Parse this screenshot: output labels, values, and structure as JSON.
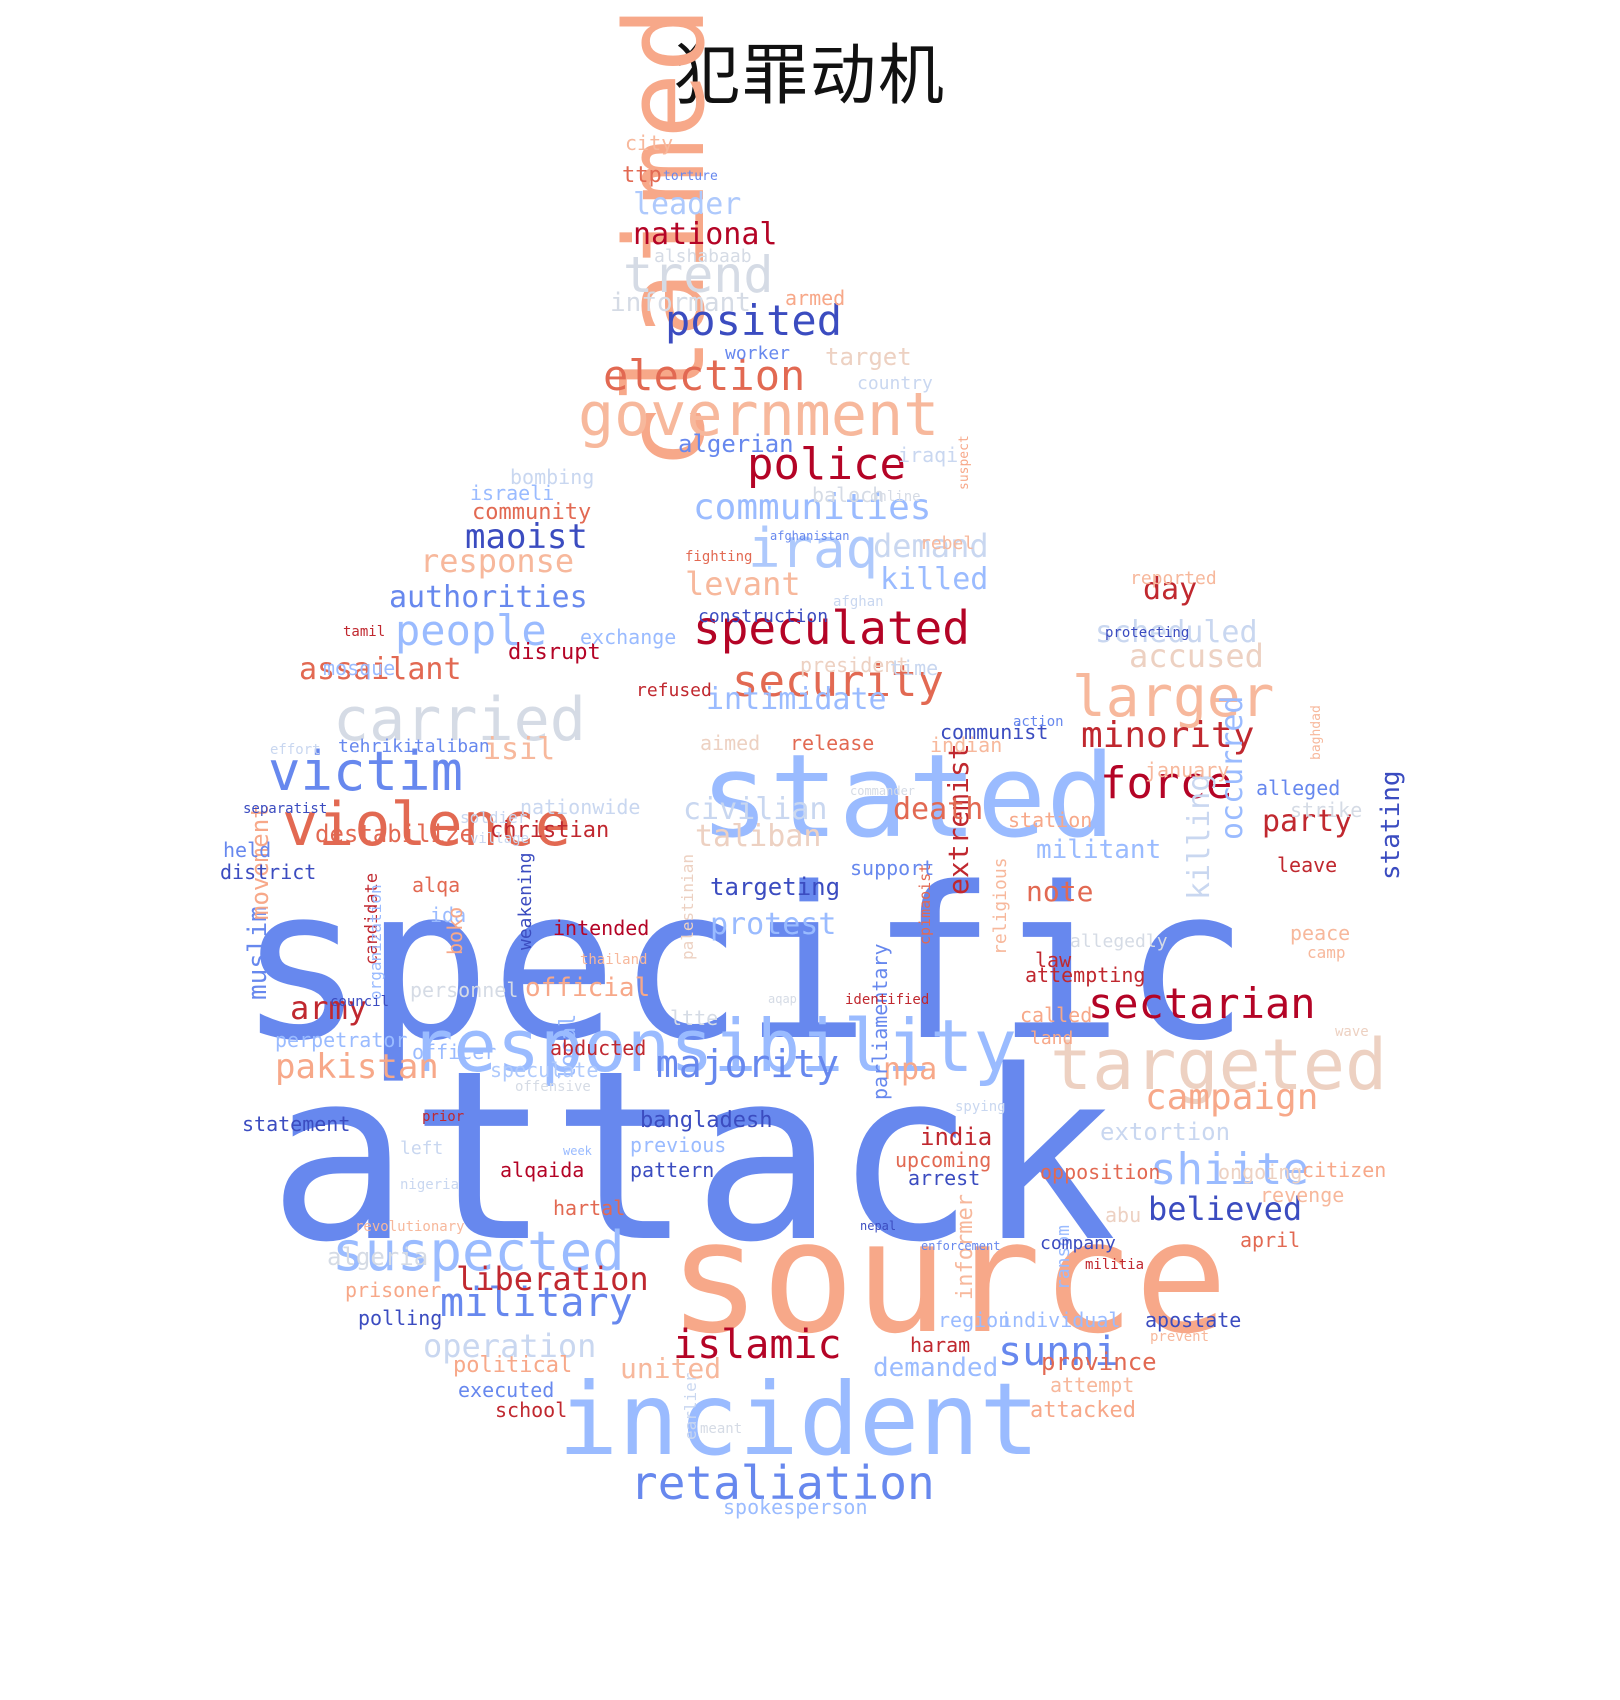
{
  "title": "犯罪动机",
  "colors": {
    "blue_dark": "#3b4cc0",
    "blue_mid": "#6788ee",
    "blue_light": "#9abbff",
    "blue_pale": "#c9d7f0",
    "red_dark": "#b40426",
    "red_mid": "#e26952",
    "red_light": "#f7a889",
    "red_pale": "#edd1c2"
  },
  "words": [
    {
      "text": "specific",
      "color": "#6788ee"
    },
    {
      "text": "attack",
      "color": "#6788ee"
    },
    {
      "text": "source",
      "color": "#f7a889"
    },
    {
      "text": "incident",
      "color": "#9abbff"
    },
    {
      "text": "stated",
      "color": "#9abbff"
    },
    {
      "text": "claimed",
      "color": "#f7a889"
    },
    {
      "text": "responsibility",
      "color": "#9abbff"
    },
    {
      "text": "targeted",
      "color": "#edd1c2"
    },
    {
      "text": "government",
      "color": "#f7b89c"
    },
    {
      "text": "violence",
      "color": "#e26952"
    },
    {
      "text": "carried",
      "color": "#d5dbe5"
    },
    {
      "text": "victim",
      "color": "#6788ee"
    },
    {
      "text": "retaliation",
      "color": "#6788ee"
    },
    {
      "text": "suspected",
      "color": "#9abbff"
    },
    {
      "text": "larger",
      "color": "#f7b89c"
    },
    {
      "text": "trend",
      "color": "#d5dbe5"
    },
    {
      "text": "iraq",
      "color": "#aec9fc"
    },
    {
      "text": "speculated",
      "color": "#b40426"
    },
    {
      "text": "security",
      "color": "#e26952"
    },
    {
      "text": "sectarian",
      "color": "#b40426"
    },
    {
      "text": "shiite",
      "color": "#9abbff"
    },
    {
      "text": "sunni",
      "color": "#6788ee"
    },
    {
      "text": "islamic",
      "color": "#b40426"
    },
    {
      "text": "police",
      "color": "#b40426"
    },
    {
      "text": "election",
      "color": "#e26952"
    },
    {
      "text": "posited",
      "color": "#3b4cc0"
    },
    {
      "text": "force",
      "color": "#b40426"
    },
    {
      "text": "minority",
      "color": "#c0282f"
    },
    {
      "text": "communities",
      "color": "#9abbff"
    },
    {
      "text": "people",
      "color": "#9abbff"
    },
    {
      "text": "military",
      "color": "#6788ee"
    },
    {
      "text": "majority",
      "color": "#6788ee"
    },
    {
      "text": "campaign",
      "color": "#f7a889"
    },
    {
      "text": "believed",
      "color": "#3b4cc0"
    },
    {
      "text": "operation",
      "color": "#c9d7f0"
    },
    {
      "text": "liberation",
      "color": "#c0282f"
    },
    {
      "text": "occurred",
      "color": "#9abbff"
    },
    {
      "text": "killing",
      "color": "#c9d7f0"
    },
    {
      "text": "extremist",
      "color": "#c0282f"
    },
    {
      "text": "pakistan",
      "color": "#f7a889"
    },
    {
      "text": "army",
      "color": "#c0282f"
    },
    {
      "text": "muslim",
      "color": "#6788ee"
    },
    {
      "text": "maoist",
      "color": "#3b4cc0"
    },
    {
      "text": "response",
      "color": "#f7b89c"
    },
    {
      "text": "authorities",
      "color": "#6788ee"
    },
    {
      "text": "assailant",
      "color": "#e26952"
    },
    {
      "text": "levant",
      "color": "#f7b89c"
    },
    {
      "text": "demand",
      "color": "#c9d7f0"
    },
    {
      "text": "killed",
      "color": "#9abbff"
    },
    {
      "text": "accused",
      "color": "#edd1c2"
    },
    {
      "text": "scheduled",
      "color": "#c9d7f0"
    },
    {
      "text": "intimidate",
      "color": "#9abbff"
    },
    {
      "text": "civilian",
      "color": "#c9d7f0"
    },
    {
      "text": "taliban",
      "color": "#edd1c2"
    },
    {
      "text": "death",
      "color": "#e26952"
    },
    {
      "text": "party",
      "color": "#c0282f"
    },
    {
      "text": "militant",
      "color": "#9abbff"
    },
    {
      "text": "note",
      "color": "#e26952"
    },
    {
      "text": "stating",
      "color": "#3b4cc0"
    },
    {
      "text": "protest",
      "color": "#9abbff"
    },
    {
      "text": "targeting",
      "color": "#3b4cc0"
    },
    {
      "text": "official",
      "color": "#f7a889"
    },
    {
      "text": "united",
      "color": "#f7b89c"
    },
    {
      "text": "demanded",
      "color": "#9abbff"
    },
    {
      "text": "province",
      "color": "#e26952"
    },
    {
      "text": "isil",
      "color": "#f7b89c"
    },
    {
      "text": "destabilize",
      "color": "#e26952"
    },
    {
      "text": "christian",
      "color": "#c0282f"
    },
    {
      "text": "disrupt",
      "color": "#b40426"
    },
    {
      "text": "npa",
      "color": "#f7a889"
    },
    {
      "text": "india",
      "color": "#c0282f"
    },
    {
      "text": "extortion",
      "color": "#c9d7f0"
    },
    {
      "text": "day",
      "color": "#c0282f"
    },
    {
      "text": "leader",
      "color": "#aec9fc"
    },
    {
      "text": "national",
      "color": "#b40426"
    },
    {
      "text": "informant",
      "color": "#d5dbe5"
    },
    {
      "text": "algerian",
      "color": "#6788ee"
    },
    {
      "text": "community",
      "color": "#e26952"
    },
    {
      "text": "parliamentary",
      "color": "#6788ee"
    },
    {
      "text": "local",
      "color": "#9abbff"
    },
    {
      "text": "movement",
      "color": "#f7a889"
    },
    {
      "text": "bangladesh",
      "color": "#3b4cc0"
    },
    {
      "text": "previous",
      "color": "#9abbff"
    },
    {
      "text": "pattern",
      "color": "#3b4cc0"
    },
    {
      "text": "alqaida",
      "color": "#b40426"
    },
    {
      "text": "hartal",
      "color": "#e26952"
    },
    {
      "text": "upcoming",
      "color": "#e26952"
    },
    {
      "text": "arrest",
      "color": "#3b4cc0"
    },
    {
      "text": "algeria",
      "color": "#d5dbe5"
    },
    {
      "text": "prisoner",
      "color": "#f7a889"
    },
    {
      "text": "polling",
      "color": "#3b4cc0"
    },
    {
      "text": "political",
      "color": "#f7a889"
    },
    {
      "text": "executed",
      "color": "#6788ee"
    },
    {
      "text": "school",
      "color": "#c0282f"
    },
    {
      "text": "statement",
      "color": "#3b4cc0"
    },
    {
      "text": "left",
      "color": "#c9d7f0"
    },
    {
      "text": "prior",
      "color": "#c0282f"
    },
    {
      "text": "alqa",
      "color": "#e26952"
    },
    {
      "text": "ida",
      "color": "#9abbff"
    },
    {
      "text": "intended",
      "color": "#b40426"
    },
    {
      "text": "weakening",
      "color": "#3b4cc0"
    },
    {
      "text": "boko",
      "color": "#f7a889"
    },
    {
      "text": "candidate",
      "color": "#c0282f"
    },
    {
      "text": "organization",
      "color": "#9abbff"
    },
    {
      "text": "personnel",
      "color": "#d5dbe5"
    },
    {
      "text": "council",
      "color": "#3b4cc0"
    },
    {
      "text": "perpetrator",
      "color": "#9abbff"
    },
    {
      "text": "officer",
      "color": "#9abbff"
    },
    {
      "text": "abducted",
      "color": "#c0282f"
    },
    {
      "text": "speculate",
      "color": "#aec9fc"
    },
    {
      "text": "offensive",
      "color": "#d5dbe5"
    },
    {
      "text": "region",
      "color": "#9abbff"
    },
    {
      "text": "haram",
      "color": "#c0282f"
    },
    {
      "text": "individual",
      "color": "#9abbff"
    },
    {
      "text": "apostate",
      "color": "#3b4cc0"
    },
    {
      "text": "ransom",
      "color": "#9abbff"
    },
    {
      "text": "informer",
      "color": "#f7b89c"
    },
    {
      "text": "company",
      "color": "#3b4cc0"
    },
    {
      "text": "april",
      "color": "#e26952"
    },
    {
      "text": "revenge",
      "color": "#f7b89c"
    },
    {
      "text": "citizen",
      "color": "#f7a889"
    },
    {
      "text": "ongoing",
      "color": "#edd1c2"
    },
    {
      "text": "opposition",
      "color": "#e26952"
    },
    {
      "text": "abu",
      "color": "#edd1c2"
    },
    {
      "text": "militia",
      "color": "#c0282f"
    },
    {
      "text": "prevent",
      "color": "#f7b89c"
    },
    {
      "text": "attempt",
      "color": "#f7b89c"
    },
    {
      "text": "attacked",
      "color": "#f7a889"
    },
    {
      "text": "spokesperson",
      "color": "#9abbff"
    },
    {
      "text": "meant",
      "color": "#d5dbe5"
    },
    {
      "text": "earlier",
      "color": "#c9d7f0"
    },
    {
      "text": "nepal",
      "color": "#3b4cc0"
    },
    {
      "text": "enforcement",
      "color": "#6788ee"
    },
    {
      "text": "revolutionary",
      "color": "#f7b89c"
    },
    {
      "text": "nigeria",
      "color": "#c9d7f0"
    },
    {
      "text": "week",
      "color": "#9abbff"
    },
    {
      "text": "spying",
      "color": "#c9d7f0"
    },
    {
      "text": "called",
      "color": "#f7a889"
    },
    {
      "text": "land",
      "color": "#f7a889"
    },
    {
      "text": "wave",
      "color": "#edd1c2"
    },
    {
      "text": "attempting",
      "color": "#c0282f"
    },
    {
      "text": "allegedly",
      "color": "#d5dbe5"
    },
    {
      "text": "law",
      "color": "#c0282f"
    },
    {
      "text": "peace",
      "color": "#f7b89c"
    },
    {
      "text": "camp",
      "color": "#f7b89c"
    },
    {
      "text": "identified",
      "color": "#c0282f"
    },
    {
      "text": "aqap",
      "color": "#d5dbe5"
    },
    {
      "text": "ltte",
      "color": "#d5dbe5"
    },
    {
      "text": "religious",
      "color": "#f7b89c"
    },
    {
      "text": "cpimaoist",
      "color": "#e26952"
    },
    {
      "text": "palestinian",
      "color": "#edd1c2"
    },
    {
      "text": "thailand",
      "color": "#f7b89c"
    },
    {
      "text": "support",
      "color": "#6788ee"
    },
    {
      "text": "station",
      "color": "#f7a889"
    },
    {
      "text": "leave",
      "color": "#c0282f"
    },
    {
      "text": "strike",
      "color": "#d5dbe5"
    },
    {
      "text": "alleged",
      "color": "#6788ee"
    },
    {
      "text": "january",
      "color": "#f7b89c"
    },
    {
      "text": "commander",
      "color": "#d5dbe5"
    },
    {
      "text": "nationwide",
      "color": "#c9d7f0"
    },
    {
      "text": "soldier",
      "color": "#c9d7f0"
    },
    {
      "text": "village",
      "color": "#c9d7f0"
    },
    {
      "text": "separatist",
      "color": "#3b4cc0"
    },
    {
      "text": "effort",
      "color": "#c9d7f0"
    },
    {
      "text": "tehrikitaliban",
      "color": "#6788ee"
    },
    {
      "text": "held",
      "color": "#6788ee"
    },
    {
      "text": "district",
      "color": "#3b4cc0"
    },
    {
      "text": "mosque",
      "color": "#9abbff"
    },
    {
      "text": "tamil",
      "color": "#c0282f"
    },
    {
      "text": "exchange",
      "color": "#9abbff"
    },
    {
      "text": "refused",
      "color": "#c0282f"
    },
    {
      "text": "president",
      "color": "#edd1c2"
    },
    {
      "text": "time",
      "color": "#c9d7f0"
    },
    {
      "text": "aimed",
      "color": "#edd1c2"
    },
    {
      "text": "release",
      "color": "#e26952"
    },
    {
      "text": "indian",
      "color": "#f7b89c"
    },
    {
      "text": "communist",
      "color": "#3b4cc0"
    },
    {
      "text": "action",
      "color": "#6788ee"
    },
    {
      "text": "baghdad",
      "color": "#f7b89c"
    },
    {
      "text": "protecting",
      "color": "#3b4cc0"
    },
    {
      "text": "reported",
      "color": "#f7b89c"
    },
    {
      "text": "construction",
      "color": "#3b4cc0"
    },
    {
      "text": "afghan",
      "color": "#c9d7f0"
    },
    {
      "text": "fighting",
      "color": "#e26952"
    },
    {
      "text": "afghanistan",
      "color": "#6788ee"
    },
    {
      "text": "rebel",
      "color": "#f7b89c"
    },
    {
      "text": "online",
      "color": "#d5dbe5"
    },
    {
      "text": "baloch",
      "color": "#d5dbe5"
    },
    {
      "text": "israeli",
      "color": "#9abbff"
    },
    {
      "text": "bombing",
      "color": "#c9d7f0"
    },
    {
      "text": "iraqi",
      "color": "#c9d7f0"
    },
    {
      "text": "suspect",
      "color": "#f7a889"
    },
    {
      "text": "country",
      "color": "#c9d7f0"
    },
    {
      "text": "target",
      "color": "#edd1c2"
    },
    {
      "text": "worker",
      "color": "#6788ee"
    },
    {
      "text": "armed",
      "color": "#f7a889"
    },
    {
      "text": "alshabaab",
      "color": "#d5dbe5"
    },
    {
      "text": "ttp",
      "color": "#e26952"
    },
    {
      "text": "torture",
      "color": "#6788ee"
    },
    {
      "text": "city",
      "color": "#f7b89c"
    }
  ]
}
